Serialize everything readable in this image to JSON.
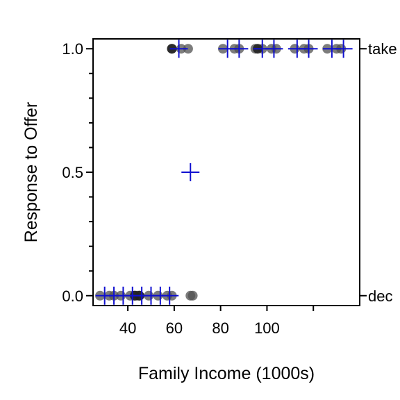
{
  "chart_data": {
    "type": "scatter",
    "xlabel": "Family Income (1000s)",
    "ylabel": "Response to Offer",
    "xlim": [
      25,
      140
    ],
    "ylim": [
      -0.04,
      1.04
    ],
    "x_ticks": [
      40,
      60,
      80,
      100,
      120
    ],
    "x_tick_labels": [
      "40",
      "60",
      "80",
      "100",
      ""
    ],
    "y_ticks": [
      0.0,
      0.5,
      1.0
    ],
    "y_tick_labels": [
      "0.0",
      "0.5",
      "1.0"
    ],
    "y_minor_ticks": [
      0.1,
      0.2,
      0.3,
      0.4,
      0.6,
      0.7,
      0.8,
      0.9
    ],
    "right_axis_labels": [
      {
        "y": 1.0,
        "label": "take"
      },
      {
        "y": 0.0,
        "label": "dec"
      }
    ],
    "points": [
      {
        "x": 28,
        "y": 0
      },
      {
        "x": 32,
        "y": 0
      },
      {
        "x": 34,
        "y": 0
      },
      {
        "x": 37,
        "y": 0
      },
      {
        "x": 41,
        "y": 0
      },
      {
        "x": 43,
        "y": 0
      },
      {
        "x": 44,
        "y": 0
      },
      {
        "x": 45,
        "y": 0
      },
      {
        "x": 49,
        "y": 0
      },
      {
        "x": 53,
        "y": 0
      },
      {
        "x": 57,
        "y": 0
      },
      {
        "x": 59,
        "y": 0
      },
      {
        "x": 67,
        "y": 0
      },
      {
        "x": 68,
        "y": 0
      },
      {
        "x": 59,
        "y": 1
      },
      {
        "x": 63,
        "y": 1
      },
      {
        "x": 66,
        "y": 1
      },
      {
        "x": 81,
        "y": 1
      },
      {
        "x": 86,
        "y": 1
      },
      {
        "x": 88,
        "y": 1
      },
      {
        "x": 95,
        "y": 1
      },
      {
        "x": 98,
        "y": 1
      },
      {
        "x": 102,
        "y": 1
      },
      {
        "x": 104,
        "y": 1
      },
      {
        "x": 112,
        "y": 1
      },
      {
        "x": 116,
        "y": 1
      },
      {
        "x": 118,
        "y": 1
      },
      {
        "x": 126,
        "y": 1
      },
      {
        "x": 130,
        "y": 1
      },
      {
        "x": 132,
        "y": 1
      }
    ],
    "dark_points": [
      {
        "x": 43,
        "y": 0
      },
      {
        "x": 45,
        "y": 0
      },
      {
        "x": 59,
        "y": 1
      },
      {
        "x": 96,
        "y": 1
      }
    ],
    "group_markers": [
      {
        "x": 30,
        "y": 0
      },
      {
        "x": 34,
        "y": 0
      },
      {
        "x": 38,
        "y": 0
      },
      {
        "x": 42,
        "y": 0
      },
      {
        "x": 46,
        "y": 0
      },
      {
        "x": 50,
        "y": 0
      },
      {
        "x": 54,
        "y": 0
      },
      {
        "x": 58,
        "y": 0
      },
      {
        "x": 67,
        "y": 0.5
      },
      {
        "x": 62,
        "y": 1
      },
      {
        "x": 83,
        "y": 1
      },
      {
        "x": 88,
        "y": 1
      },
      {
        "x": 98,
        "y": 1
      },
      {
        "x": 103,
        "y": 1
      },
      {
        "x": 113,
        "y": 1
      },
      {
        "x": 118,
        "y": 1
      },
      {
        "x": 128,
        "y": 1
      },
      {
        "x": 133,
        "y": 1
      }
    ],
    "colors": {
      "point": "#505050",
      "point_dark": "#222222",
      "marker": "#1010d0",
      "axis": "#000000"
    },
    "grid": false
  }
}
